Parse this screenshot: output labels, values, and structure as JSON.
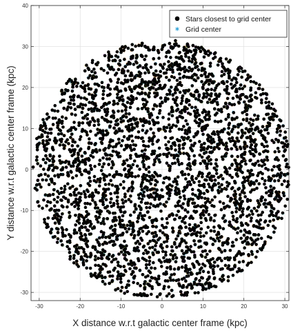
{
  "chart_data": {
    "type": "scatter",
    "xlabel": "X distance w.r.t galactic center frame (kpc)",
    "ylabel": "Y distance w.r.t galactic center frame (kpc)",
    "xlim": [
      -32,
      31
    ],
    "ylim": [
      -32,
      40
    ],
    "xticks": [
      -30,
      -20,
      -10,
      0,
      10,
      20,
      30
    ],
    "yticks": [
      -30,
      -20,
      -10,
      0,
      10,
      20,
      30,
      40
    ],
    "grid": true,
    "box": true,
    "legend_position": "top-right",
    "distribution": {
      "shape": "annulus",
      "center": [
        0,
        0
      ],
      "inner_radius_kpc": 1.5,
      "outer_radius_kpc": 31.5
    },
    "series": [
      {
        "name": "Stars closest to grid center",
        "marker": "filled-circle",
        "color": "#000000"
      },
      {
        "name": "Grid center",
        "marker": "asterisk",
        "colors": [
          "#1f9bd4",
          "#e07b1f",
          "#8fbf3f",
          "#b04fc8",
          "#2cb5a8",
          "#d1b01f"
        ]
      }
    ]
  }
}
